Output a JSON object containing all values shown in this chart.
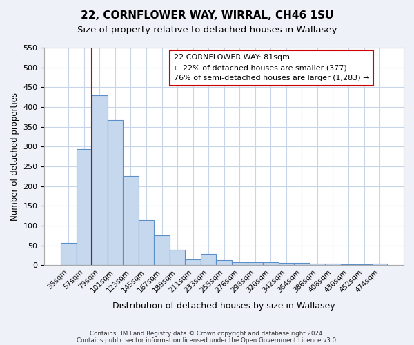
{
  "title": "22, CORNFLOWER WAY, WIRRAL, CH46 1SU",
  "subtitle": "Size of property relative to detached houses in Wallasey",
  "xlabel": "Distribution of detached houses by size in Wallasey",
  "ylabel": "Number of detached properties",
  "bar_labels": [
    "35sqm",
    "57sqm",
    "79sqm",
    "101sqm",
    "123sqm",
    "145sqm",
    "167sqm",
    "189sqm",
    "211sqm",
    "233sqm",
    "255sqm",
    "276sqm",
    "298sqm",
    "320sqm",
    "342sqm",
    "364sqm",
    "386sqm",
    "408sqm",
    "430sqm",
    "452sqm",
    "474sqm"
  ],
  "bar_values": [
    57,
    293,
    430,
    367,
    226,
    113,
    76,
    38,
    15,
    28,
    13,
    8,
    8,
    8,
    5,
    5,
    3,
    3,
    2,
    2,
    3
  ],
  "bar_color": "#c5d8ed",
  "bar_edge_color": "#5b8fc9",
  "vline_index": 2,
  "vline_color": "#cc0000",
  "ylim": [
    0,
    550
  ],
  "yticks": [
    0,
    50,
    100,
    150,
    200,
    250,
    300,
    350,
    400,
    450,
    500,
    550
  ],
  "annotation_title": "22 CORNFLOWER WAY: 81sqm",
  "annotation_line1": "← 22% of detached houses are smaller (377)",
  "annotation_line2": "76% of semi-detached houses are larger (1,283) →",
  "annotation_box_color": "#ffffff",
  "annotation_box_edge": "#cc0000",
  "footer_line1": "Contains HM Land Registry data © Crown copyright and database right 2024.",
  "footer_line2": "Contains public sector information licensed under the Open Government Licence v3.0.",
  "bg_color": "#eef2f8",
  "plot_bg_color": "#ffffff",
  "grid_color": "#c8d4e8"
}
